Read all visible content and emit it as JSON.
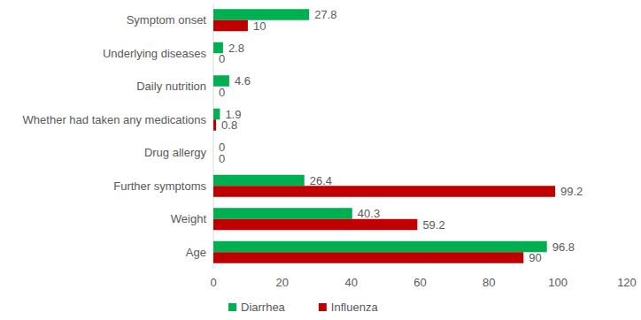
{
  "chart_data": {
    "type": "bar",
    "orientation": "horizontal",
    "categories": [
      "Symptom onset",
      "Underlying diseases",
      "Daily nutrition",
      "Whether had taken any medications",
      "Drug allergy",
      "Further symptoms",
      "Weight",
      "Age"
    ],
    "series": [
      {
        "name": "Diarrhea",
        "color": "#00b050",
        "values": [
          27.8,
          2.8,
          4.6,
          1.9,
          0,
          26.4,
          40.3,
          96.8
        ]
      },
      {
        "name": "Influenza",
        "color": "#c00000",
        "values": [
          10,
          0,
          0,
          0.8,
          0,
          99.2,
          59.2,
          90
        ]
      }
    ],
    "xlim": [
      0,
      120
    ],
    "xticks": [
      0,
      20,
      40,
      60,
      80,
      100,
      120
    ],
    "grid": false,
    "data_labels": true,
    "legend": "bottom"
  }
}
